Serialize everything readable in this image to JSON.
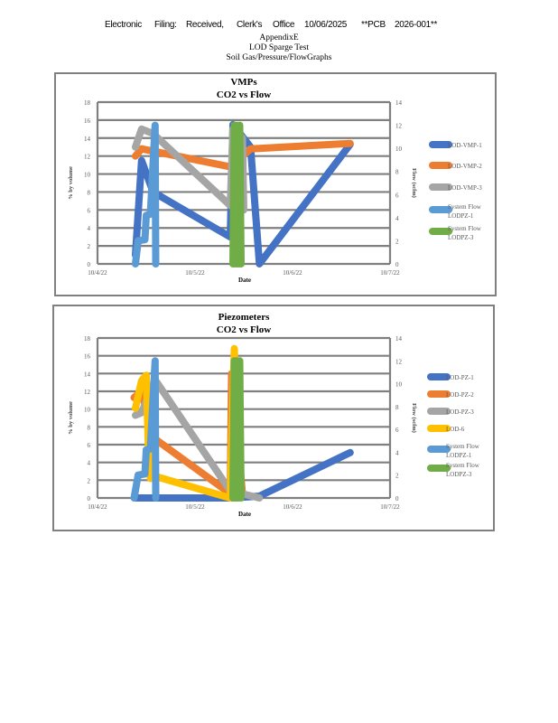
{
  "header": {
    "words": [
      "Electronic",
      "Filing:",
      "Received,",
      "Clerk's",
      "Office",
      "10/06/2025",
      "**PCB",
      "2026-001**"
    ],
    "appendix": "AppendixE",
    "test": "LOD Sparge Test",
    "graphs": "Soil Gas/Pressure/FlowGraphs"
  },
  "colors": {
    "grid": "#7f7f7f",
    "frame": "#808080",
    "axis_text": "#595959"
  },
  "chart_data": [
    {
      "type": "line",
      "title": "VMPs",
      "subtitle": "CO2 vs Flow",
      "xlabel": "Date",
      "ylabel": "% by volume",
      "y2label": "Flow (scfm)",
      "xlim": [
        "2022-10-04 00:00",
        "2022-10-07 00:00"
      ],
      "xticks": [
        "10/4/22",
        "10/5/22",
        "10/6/22",
        "10/7/22"
      ],
      "ylim": [
        0,
        18
      ],
      "ystep": 2,
      "y2lim": [
        0,
        14
      ],
      "y2step": 2,
      "grid": true,
      "legend": "right",
      "series": [
        {
          "name": "LOD-VMP-1",
          "color": "#4472C4",
          "axis": "left",
          "x": [
            "2022-10-04 09:20",
            "2022-10-04 10:50",
            "2022-10-04 13:40",
            "2022-10-05 08:40",
            "2022-10-05 09:20",
            "2022-10-05 13:40",
            "2022-10-05 15:50",
            "2022-10-06 14:10"
          ],
          "y": [
            1,
            11.5,
            8,
            3,
            15.5,
            13,
            0,
            13.3
          ]
        },
        {
          "name": "LOD-VMP-2",
          "color": "#ED7D31",
          "axis": "left",
          "x": [
            "2022-10-04 09:20",
            "2022-10-04 10:50",
            "2022-10-05 08:40",
            "2022-10-05 13:40",
            "2022-10-06 14:10"
          ],
          "y": [
            12,
            12.8,
            10.8,
            12.8,
            13.4
          ]
        },
        {
          "name": "LOD-VMP-3",
          "color": "#A5A5A5",
          "axis": "left",
          "x": [
            "2022-10-04 09:20",
            "2022-10-04 10:50",
            "2022-10-04 13:40",
            "2022-10-05 08:40",
            "2022-10-05 09:20",
            "2022-10-05 11:40",
            "2022-10-05 12:00"
          ],
          "y": [
            13,
            15,
            14.5,
            6.5,
            15,
            14,
            6
          ]
        },
        {
          "name": "System Flow LODPZ-1",
          "label_lines": [
            "System Flow",
            "LODPZ-1"
          ],
          "color": "#5B9BD5",
          "axis": "right",
          "x": [
            "2022-10-04 09:20",
            "2022-10-04 10:00",
            "2022-10-04 11:40",
            "2022-10-04 12:00",
            "2022-10-04 13:00",
            "2022-10-04 14:10",
            "2022-10-04 14:20"
          ],
          "y": [
            0,
            2,
            2.1,
            4.2,
            4.3,
            12,
            0
          ]
        },
        {
          "name": "System Flow LODPZ-3",
          "label_lines": [
            "System Flow",
            "LODPZ-3"
          ],
          "color": "#70AD47",
          "axis": "right",
          "x": [
            "2022-10-05 09:20",
            "2022-10-05 09:40",
            "2022-10-05 10:00",
            "2022-10-05 10:20",
            "2022-10-05 10:40",
            "2022-10-05 11:00",
            "2022-10-05 11:20"
          ],
          "y": [
            0,
            12,
            0,
            12,
            0,
            12,
            0
          ]
        }
      ]
    },
    {
      "type": "line",
      "title": "Piezometers",
      "subtitle": "CO2 vs Flow",
      "xlabel": "Date",
      "ylabel": "% by volume",
      "y2label": "Flow (scfm)",
      "xlim": [
        "2022-10-04 00:00",
        "2022-10-07 00:00"
      ],
      "xticks": [
        "10/4/22",
        "10/5/22",
        "10/6/22",
        "10/7/22"
      ],
      "ylim": [
        0,
        18
      ],
      "ystep": 2,
      "y2lim": [
        0,
        14
      ],
      "y2step": 2,
      "grid": true,
      "legend": "right",
      "series": [
        {
          "name": "LOD-PZ-1",
          "color": "#4472C4",
          "axis": "left",
          "x": [
            "2022-10-04 09:20",
            "2022-10-05 08:40",
            "2022-10-05 15:50",
            "2022-10-06 14:10"
          ],
          "y": [
            0,
            0,
            0.2,
            5.1
          ]
        },
        {
          "name": "LOD-PZ-2",
          "color": "#ED7D31",
          "axis": "left",
          "x": [
            "2022-10-04 09:00",
            "2022-10-04 10:50",
            "2022-10-04 13:40",
            "2022-10-05 08:40",
            "2022-10-05 09:00",
            "2022-10-05 11:40"
          ],
          "y": [
            11.3,
            12,
            6.8,
            0.5,
            14,
            0.5
          ]
        },
        {
          "name": "LOD-PZ-3",
          "color": "#A5A5A5",
          "axis": "left",
          "x": [
            "2022-10-04 09:20",
            "2022-10-04 10:50",
            "2022-10-04 14:10",
            "2022-10-05 08:40",
            "2022-10-05 15:50"
          ],
          "y": [
            9.3,
            9.6,
            13.3,
            0.8,
            0
          ]
        },
        {
          "name": "LOD-6",
          "color": "#FFC000",
          "axis": "left",
          "x": [
            "2022-10-04 09:20",
            "2022-10-04 10:50",
            "2022-10-04 12:00",
            "2022-10-04 12:30",
            "2022-10-04 13:00",
            "2022-10-04 13:40",
            "2022-10-05 08:40",
            "2022-10-05 09:40",
            "2022-10-05 10:30"
          ],
          "y": [
            10.1,
            13.2,
            13.8,
            5.7,
            2.2,
            2.5,
            0,
            16.8,
            0
          ]
        },
        {
          "name": "System Flow LODPZ-1",
          "label_lines": [
            "System Flow",
            "LODPZ-1"
          ],
          "color": "#5B9BD5",
          "axis": "right",
          "x": [
            "2022-10-04 09:00",
            "2022-10-04 10:00",
            "2022-10-04 11:40",
            "2022-10-04 12:00",
            "2022-10-04 13:00",
            "2022-10-04 14:10",
            "2022-10-04 14:20"
          ],
          "y": [
            0,
            2,
            2.1,
            4.2,
            4.3,
            12,
            0
          ]
        },
        {
          "name": "System Flow LODPZ-3",
          "label_lines": [
            "System Flow",
            "LODPZ-3"
          ],
          "color": "#70AD47",
          "axis": "right",
          "x": [
            "2022-10-05 09:20",
            "2022-10-05 09:40",
            "2022-10-05 10:00",
            "2022-10-05 10:20",
            "2022-10-05 10:40",
            "2022-10-05 11:00",
            "2022-10-05 11:20"
          ],
          "y": [
            0,
            12,
            0,
            12,
            0,
            12,
            0
          ]
        }
      ]
    }
  ]
}
